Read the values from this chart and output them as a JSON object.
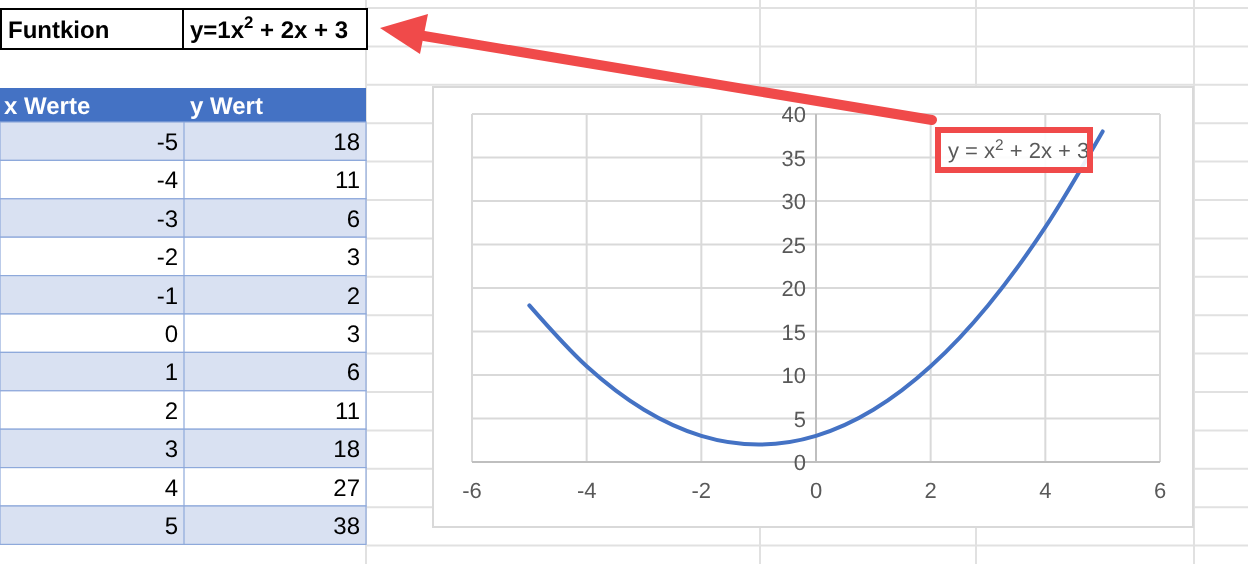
{
  "chart_data": {
    "type": "line",
    "x": [
      -5,
      -4,
      -3,
      -2,
      -1,
      0,
      1,
      2,
      3,
      4,
      5
    ],
    "series": [
      {
        "color": "#4472c4",
        "values": [
          18,
          11,
          6,
          3,
          2,
          3,
          6,
          11,
          18,
          27,
          38
        ]
      }
    ],
    "xlim": [
      -6,
      6
    ],
    "xticks": [
      -6,
      -4,
      -2,
      0,
      2,
      4,
      6
    ],
    "ylim": [
      0,
      40
    ],
    "yticks": [
      0,
      5,
      10,
      15,
      20,
      25,
      30,
      35,
      40
    ],
    "grid": true,
    "marker": "none",
    "line_style": "solid",
    "annotations": [
      "Funtkion",
      "y=1x$^{2}$ + 2x + 3",
      "x Werte",
      "y Wert",
      "y = x$^{2}$ + 2x + 3",
      "-5",
      "18",
      "-4",
      "11",
      "-3",
      "6",
      "-2",
      "3",
      "-1",
      "2",
      "0",
      "3",
      "1",
      "6",
      "2",
      "11",
      "3",
      "18",
      "4",
      "27",
      "5",
      "38"
    ]
  }
}
